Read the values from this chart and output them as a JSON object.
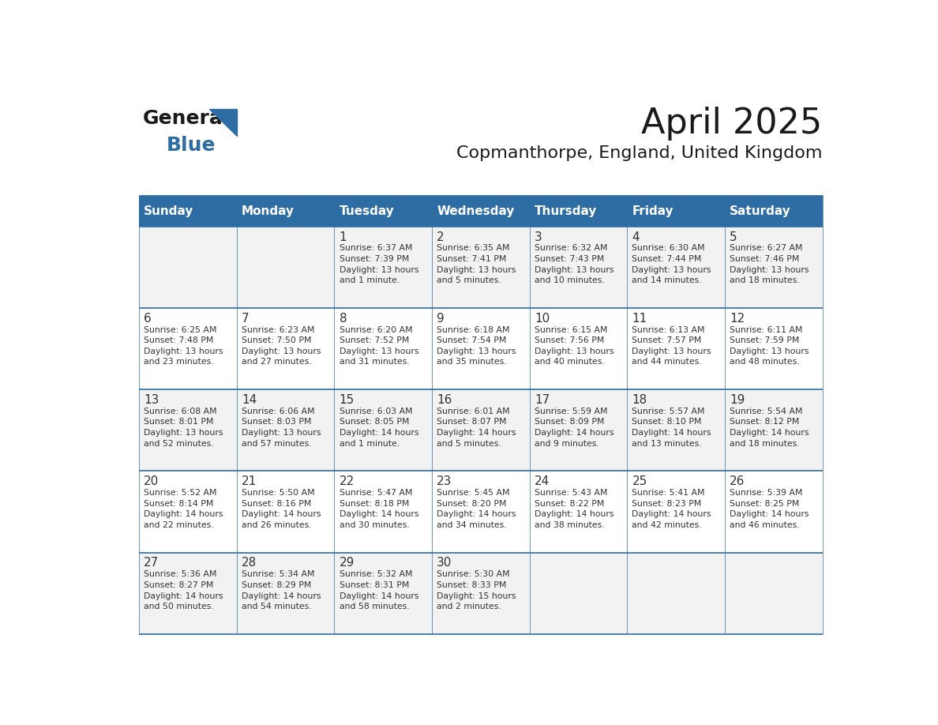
{
  "title": "April 2025",
  "subtitle": "Copmanthorpe, England, United Kingdom",
  "days_of_week": [
    "Sunday",
    "Monday",
    "Tuesday",
    "Wednesday",
    "Thursday",
    "Friday",
    "Saturday"
  ],
  "header_bg": "#2E6DA4",
  "header_text_color": "#FFFFFF",
  "cell_bg_odd": "#F2F2F2",
  "cell_bg_even": "#FFFFFF",
  "cell_text_color": "#333333",
  "border_color": "#2E6DA4",
  "title_color": "#1a1a1a",
  "subtitle_color": "#1a1a1a",
  "logo_general_color": "#1a1a1a",
  "logo_blue_color": "#2E6DA4",
  "calendar_data": [
    [
      {
        "day": null,
        "info": null
      },
      {
        "day": null,
        "info": null
      },
      {
        "day": 1,
        "info": "Sunrise: 6:37 AM\nSunset: 7:39 PM\nDaylight: 13 hours\nand 1 minute."
      },
      {
        "day": 2,
        "info": "Sunrise: 6:35 AM\nSunset: 7:41 PM\nDaylight: 13 hours\nand 5 minutes."
      },
      {
        "day": 3,
        "info": "Sunrise: 6:32 AM\nSunset: 7:43 PM\nDaylight: 13 hours\nand 10 minutes."
      },
      {
        "day": 4,
        "info": "Sunrise: 6:30 AM\nSunset: 7:44 PM\nDaylight: 13 hours\nand 14 minutes."
      },
      {
        "day": 5,
        "info": "Sunrise: 6:27 AM\nSunset: 7:46 PM\nDaylight: 13 hours\nand 18 minutes."
      }
    ],
    [
      {
        "day": 6,
        "info": "Sunrise: 6:25 AM\nSunset: 7:48 PM\nDaylight: 13 hours\nand 23 minutes."
      },
      {
        "day": 7,
        "info": "Sunrise: 6:23 AM\nSunset: 7:50 PM\nDaylight: 13 hours\nand 27 minutes."
      },
      {
        "day": 8,
        "info": "Sunrise: 6:20 AM\nSunset: 7:52 PM\nDaylight: 13 hours\nand 31 minutes."
      },
      {
        "day": 9,
        "info": "Sunrise: 6:18 AM\nSunset: 7:54 PM\nDaylight: 13 hours\nand 35 minutes."
      },
      {
        "day": 10,
        "info": "Sunrise: 6:15 AM\nSunset: 7:56 PM\nDaylight: 13 hours\nand 40 minutes."
      },
      {
        "day": 11,
        "info": "Sunrise: 6:13 AM\nSunset: 7:57 PM\nDaylight: 13 hours\nand 44 minutes."
      },
      {
        "day": 12,
        "info": "Sunrise: 6:11 AM\nSunset: 7:59 PM\nDaylight: 13 hours\nand 48 minutes."
      }
    ],
    [
      {
        "day": 13,
        "info": "Sunrise: 6:08 AM\nSunset: 8:01 PM\nDaylight: 13 hours\nand 52 minutes."
      },
      {
        "day": 14,
        "info": "Sunrise: 6:06 AM\nSunset: 8:03 PM\nDaylight: 13 hours\nand 57 minutes."
      },
      {
        "day": 15,
        "info": "Sunrise: 6:03 AM\nSunset: 8:05 PM\nDaylight: 14 hours\nand 1 minute."
      },
      {
        "day": 16,
        "info": "Sunrise: 6:01 AM\nSunset: 8:07 PM\nDaylight: 14 hours\nand 5 minutes."
      },
      {
        "day": 17,
        "info": "Sunrise: 5:59 AM\nSunset: 8:09 PM\nDaylight: 14 hours\nand 9 minutes."
      },
      {
        "day": 18,
        "info": "Sunrise: 5:57 AM\nSunset: 8:10 PM\nDaylight: 14 hours\nand 13 minutes."
      },
      {
        "day": 19,
        "info": "Sunrise: 5:54 AM\nSunset: 8:12 PM\nDaylight: 14 hours\nand 18 minutes."
      }
    ],
    [
      {
        "day": 20,
        "info": "Sunrise: 5:52 AM\nSunset: 8:14 PM\nDaylight: 14 hours\nand 22 minutes."
      },
      {
        "day": 21,
        "info": "Sunrise: 5:50 AM\nSunset: 8:16 PM\nDaylight: 14 hours\nand 26 minutes."
      },
      {
        "day": 22,
        "info": "Sunrise: 5:47 AM\nSunset: 8:18 PM\nDaylight: 14 hours\nand 30 minutes."
      },
      {
        "day": 23,
        "info": "Sunrise: 5:45 AM\nSunset: 8:20 PM\nDaylight: 14 hours\nand 34 minutes."
      },
      {
        "day": 24,
        "info": "Sunrise: 5:43 AM\nSunset: 8:22 PM\nDaylight: 14 hours\nand 38 minutes."
      },
      {
        "day": 25,
        "info": "Sunrise: 5:41 AM\nSunset: 8:23 PM\nDaylight: 14 hours\nand 42 minutes."
      },
      {
        "day": 26,
        "info": "Sunrise: 5:39 AM\nSunset: 8:25 PM\nDaylight: 14 hours\nand 46 minutes."
      }
    ],
    [
      {
        "day": 27,
        "info": "Sunrise: 5:36 AM\nSunset: 8:27 PM\nDaylight: 14 hours\nand 50 minutes."
      },
      {
        "day": 28,
        "info": "Sunrise: 5:34 AM\nSunset: 8:29 PM\nDaylight: 14 hours\nand 54 minutes."
      },
      {
        "day": 29,
        "info": "Sunrise: 5:32 AM\nSunset: 8:31 PM\nDaylight: 14 hours\nand 58 minutes."
      },
      {
        "day": 30,
        "info": "Sunrise: 5:30 AM\nSunset: 8:33 PM\nDaylight: 15 hours\nand 2 minutes."
      },
      {
        "day": null,
        "info": null
      },
      {
        "day": null,
        "info": null
      },
      {
        "day": null,
        "info": null
      }
    ]
  ]
}
